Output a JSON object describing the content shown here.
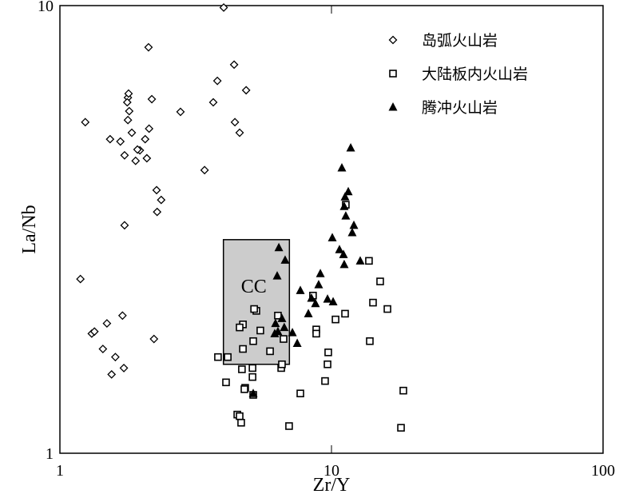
{
  "chart_data": {
    "type": "scatter",
    "x_label": "Zr/Y",
    "y_label": "La/Nb",
    "xscale": "log",
    "yscale": "log",
    "xlim": [
      1,
      100
    ],
    "ylim": [
      1,
      10
    ],
    "xticks": [
      1,
      10,
      100
    ],
    "yticks": [
      1,
      10
    ],
    "legend": "upper right",
    "regions": [
      {
        "label": "CC",
        "xrange": [
          4,
          7
        ],
        "yrange": [
          1.58,
          3
        ],
        "color": "#cccccc"
      }
    ],
    "series": [
      {
        "name": "岛弧火山岩",
        "marker": "diamond",
        "color": "#000000",
        "x": [
          2.12,
          1.24,
          1.53,
          1.67,
          1.78,
          1.79,
          1.77,
          1.8,
          1.78,
          1.84,
          1.73,
          1.9,
          1.97,
          2.06,
          2.13,
          2.18,
          2.09,
          1.93,
          2.78,
          3.41,
          3.67,
          3.8,
          4.38,
          4.85,
          4.41,
          4.59,
          2.27,
          2.36,
          2.28,
          1.73,
          1.19,
          1.31,
          1.34,
          1.49,
          1.7,
          2.22,
          1.44,
          1.6,
          1.72,
          1.55,
          4.01
        ],
        "values": [
          8.07,
          5.49,
          5.03,
          4.97,
          6.23,
          6.36,
          6.08,
          5.81,
          5.55,
          5.2,
          4.63,
          4.5,
          4.75,
          5.03,
          5.31,
          6.18,
          4.56,
          4.77,
          5.79,
          4.29,
          6.08,
          6.79,
          7.38,
          6.47,
          5.49,
          5.2,
          3.87,
          3.68,
          3.46,
          3.23,
          2.45,
          1.85,
          1.87,
          1.95,
          2.03,
          1.8,
          1.71,
          1.64,
          1.55,
          1.5,
          9.9
        ]
      },
      {
        "name": "大陆板内火山岩",
        "marker": "square",
        "color": "#000000",
        "x": [
          3.82,
          4.09,
          4.15,
          4.81,
          4.78,
          4.68,
          4.5,
          4.59,
          4.65,
          5.12,
          5.12,
          5.15,
          5.15,
          4.72,
          4.72,
          4.59,
          5.29,
          5.47,
          5.94,
          6.53,
          6.66,
          6.98,
          7.68,
          8.55,
          8.79,
          8.79,
          9.73,
          9.67,
          9.47,
          10.35,
          11.22,
          11.29,
          13.74,
          14.22,
          15.11,
          16.07,
          13.84,
          18.39,
          18.03,
          6.57,
          6.35,
          5.19
        ],
        "values": [
          1.64,
          1.44,
          1.64,
          1.4,
          1.39,
          1.54,
          1.22,
          1.21,
          1.17,
          1.48,
          1.55,
          1.35,
          1.78,
          1.71,
          1.94,
          1.91,
          2.08,
          1.88,
          1.69,
          1.55,
          1.8,
          1.15,
          1.36,
          2.25,
          1.89,
          1.85,
          1.68,
          1.58,
          1.45,
          1.99,
          2.05,
          3.59,
          2.69,
          2.17,
          2.42,
          2.1,
          1.78,
          1.38,
          1.14,
          1.58,
          2.03,
          2.1
        ]
      },
      {
        "name": "腾冲火山岩",
        "marker": "triangle",
        "color": "#000000",
        "x": [
          11.77,
          10.92,
          11.53,
          11.22,
          11.14,
          11.29,
          12.09,
          11.92,
          10.07,
          10.7,
          11.07,
          12.76,
          11.14,
          6.4,
          6.75,
          6.31,
          9.1,
          7.68,
          8.97,
          8.44,
          8.73,
          8.22,
          9.67,
          10.14,
          6.57,
          6.22,
          6.35,
          6.7,
          7.18,
          7.48,
          6.18,
          5.15
        ],
        "values": [
          4.81,
          4.34,
          3.84,
          3.74,
          3.56,
          3.39,
          3.23,
          3.11,
          3.03,
          2.85,
          2.78,
          2.69,
          2.64,
          2.88,
          2.7,
          2.49,
          2.52,
          2.31,
          2.38,
          2.22,
          2.16,
          2.05,
          2.21,
          2.18,
          2.0,
          1.95,
          1.87,
          1.91,
          1.86,
          1.76,
          1.85,
          1.36
        ]
      }
    ]
  }
}
